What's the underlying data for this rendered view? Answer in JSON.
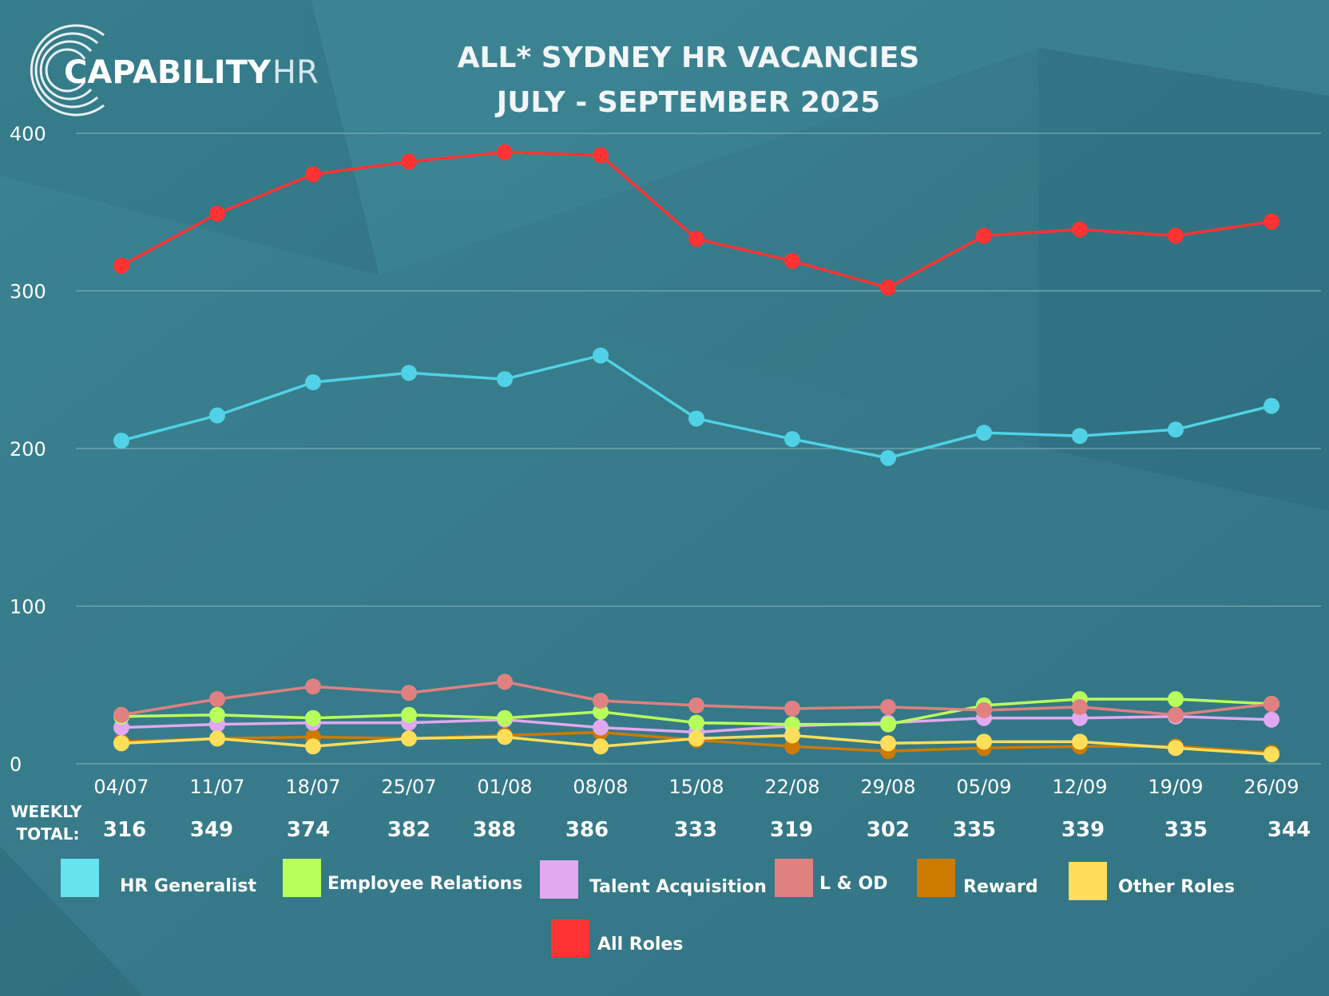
{
  "logo": {
    "main": "CAPABILITY",
    "suffix": "HR"
  },
  "colors": {
    "background": "#3a7f8e",
    "grid": "#8fbac3"
  },
  "chart_data": {
    "type": "line",
    "title": "ALL* SYDNEY HR VACANCIES",
    "subtitle": "JULY - SEPTEMBER 2025",
    "ylim": [
      0,
      400
    ],
    "yticks": [
      "0",
      "100",
      "200",
      "300",
      "400"
    ],
    "categories": [
      "04/07",
      "11/07",
      "18/07",
      "25/07",
      "01/08",
      "08/08",
      "15/08",
      "22/08",
      "29/08",
      "05/09",
      "12/09",
      "19/09",
      "26/09"
    ],
    "totals_label": [
      "WEEKLY",
      "TOTAL:"
    ],
    "totals": [
      "316",
      "349",
      "374",
      "382",
      "388",
      "386",
      "333",
      "319",
      "302",
      "335",
      "339",
      "335",
      "344"
    ],
    "series": [
      {
        "name": "Reward",
        "color": "#cc7a00",
        "values": [
          14,
          16,
          17,
          16,
          18,
          20,
          15,
          11,
          8,
          10,
          11,
          11,
          7
        ]
      },
      {
        "name": "Talent Acquisition",
        "color": "#e2a8f0",
        "values": [
          23,
          25,
          26,
          26,
          28,
          23,
          20,
          24,
          26,
          29,
          29,
          30,
          28
        ]
      },
      {
        "name": "Employee Relations",
        "color": "#b8ff5c",
        "values": [
          30,
          31,
          29,
          31,
          29,
          33,
          26,
          25,
          25,
          37,
          41,
          41,
          38
        ]
      },
      {
        "name": "L & OD",
        "color": "#e08080",
        "values": [
          31,
          41,
          49,
          45,
          52,
          40,
          37,
          35,
          36,
          34,
          36,
          31,
          38
        ]
      },
      {
        "name": "Other Roles",
        "color": "#ffde5a",
        "values": [
          13,
          16,
          11,
          16,
          17,
          11,
          16,
          18,
          13,
          14,
          14,
          10,
          6
        ]
      },
      {
        "name": "HR Generalist",
        "color": "#4fd2e6",
        "values": [
          205,
          221,
          242,
          248,
          244,
          259,
          219,
          206,
          194,
          210,
          208,
          212,
          227
        ]
      },
      {
        "name": "All Roles",
        "color": "#ff3333",
        "values": [
          316,
          349,
          374,
          382,
          388,
          386,
          333,
          319,
          302,
          335,
          339,
          335,
          344
        ]
      }
    ],
    "legend": [
      {
        "name": "HR Generalist",
        "color": "#66e3ec"
      },
      {
        "name": "Employee Relations",
        "color": "#b8ff5c"
      },
      {
        "name": "Talent Acquisition",
        "color": "#e2a8f0"
      },
      {
        "name": "L & OD",
        "color": "#e08080"
      },
      {
        "name": "Reward",
        "color": "#cc7a00"
      },
      {
        "name": "Other Roles",
        "color": "#ffde5a"
      },
      {
        "name": "All Roles",
        "color": "#ff3333"
      }
    ]
  }
}
